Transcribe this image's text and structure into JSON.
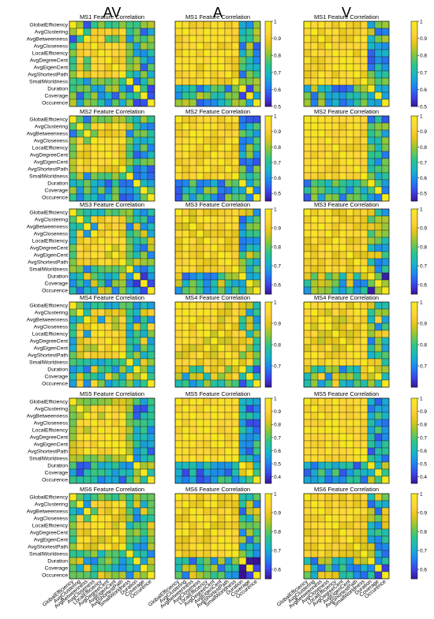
{
  "figure": {
    "columns": [
      "AV",
      "A",
      "V"
    ]
  },
  "features": [
    "GlobalEfficiency",
    "AvgClustering",
    "AvgBetweenness",
    "AvgCloseness",
    "LocalEfficiency",
    "AvgDegreeCent",
    "AvgEigenCent",
    "AvgShortestPath",
    "SmallWorldness",
    "Duration",
    "Coverage",
    "Occurence"
  ],
  "colormap": [
    "#3a0f8f",
    "#3a45e8",
    "#1f86f0",
    "#19b5c8",
    "#2ec48c",
    "#8ac73c",
    "#e6c51a",
    "#ffd43a",
    "#f6e81f"
  ],
  "chart_data": [
    {
      "type": "heatmap",
      "title": "MS1 Feature Correlation",
      "row": 0,
      "col": "AV",
      "seed": 11,
      "min": 0.5,
      "max": 1,
      "kind": "av"
    },
    {
      "type": "heatmap",
      "title": "MS1 Feature Correlation",
      "row": 0,
      "col": "A",
      "seed": 12,
      "min": 0.5,
      "max": 1,
      "kind": "a",
      "colorbar": {
        "ticks": [
          1,
          0.9,
          0.8,
          0.7,
          0.6,
          0.5
        ]
      }
    },
    {
      "type": "heatmap",
      "title": "MS1 Feature Correlation",
      "row": 0,
      "col": "V",
      "seed": 13,
      "min": 0.5,
      "max": 1,
      "kind": "v",
      "colorbar": {
        "ticks": [
          1,
          0.9,
          0.8,
          0.7,
          0.6,
          0.5
        ]
      }
    },
    {
      "type": "heatmap",
      "title": "MS2 Feature Correlation",
      "row": 1,
      "col": "AV",
      "seed": 21,
      "min": 0.45,
      "max": 1,
      "kind": "av"
    },
    {
      "type": "heatmap",
      "title": "MS2 Feature Correlation",
      "row": 1,
      "col": "A",
      "seed": 22,
      "min": 0.45,
      "max": 1,
      "kind": "a",
      "colorbar": {
        "ticks": [
          1,
          0.9,
          0.8,
          0.7,
          0.6,
          0.5
        ]
      }
    },
    {
      "type": "heatmap",
      "title": "MS2 Feature Correlation",
      "row": 1,
      "col": "V",
      "seed": 23,
      "min": 0.45,
      "max": 1,
      "kind": "v",
      "colorbar": {
        "ticks": [
          1,
          0.9,
          0.8,
          0.7,
          0.6,
          0.5
        ]
      }
    },
    {
      "type": "heatmap",
      "title": "MS3 Feature Correlation",
      "row": 2,
      "col": "AV",
      "seed": 31,
      "min": 0.55,
      "max": 1,
      "kind": "av"
    },
    {
      "type": "heatmap",
      "title": "MS3 Feature Correlation",
      "row": 2,
      "col": "A",
      "seed": 32,
      "min": 0.55,
      "max": 1,
      "kind": "a",
      "colorbar": {
        "ticks": [
          1,
          0.9,
          0.8,
          0.7,
          0.6
        ]
      }
    },
    {
      "type": "heatmap",
      "title": "MS3 Feature Correlation",
      "row": 2,
      "col": "V",
      "seed": 33,
      "min": 0.55,
      "max": 1,
      "kind": "v",
      "colorbar": {
        "ticks": [
          1,
          0.9,
          0.8,
          0.7,
          0.6
        ]
      }
    },
    {
      "type": "heatmap",
      "title": "MS4 Feature Correlation",
      "row": 3,
      "col": "AV",
      "seed": 41,
      "min": 0.6,
      "max": 1,
      "kind": "av"
    },
    {
      "type": "heatmap",
      "title": "MS4 Feature Correlation",
      "row": 3,
      "col": "A",
      "seed": 42,
      "min": 0.6,
      "max": 1,
      "kind": "a",
      "colorbar": {
        "ticks": [
          1,
          0.9,
          0.8,
          0.7
        ]
      }
    },
    {
      "type": "heatmap",
      "title": "MS4 Feature Correlation",
      "row": 3,
      "col": "V",
      "seed": 43,
      "min": 0.6,
      "max": 1,
      "kind": "v",
      "colorbar": {
        "ticks": [
          1,
          0.9,
          0.8,
          0.7
        ]
      }
    },
    {
      "type": "heatmap",
      "title": "MS5 Feature Correlation",
      "row": 4,
      "col": "AV",
      "seed": 51,
      "min": 0.35,
      "max": 1,
      "kind": "av"
    },
    {
      "type": "heatmap",
      "title": "MS5 Feature Correlation",
      "row": 4,
      "col": "A",
      "seed": 52,
      "min": 0.35,
      "max": 1,
      "kind": "a",
      "colorbar": {
        "ticks": [
          1,
          0.9,
          0.8,
          0.7,
          0.6,
          0.5,
          0.4
        ]
      }
    },
    {
      "type": "heatmap",
      "title": "MS5 Feature Correlation",
      "row": 4,
      "col": "V",
      "seed": 53,
      "min": 0.35,
      "max": 1,
      "kind": "v",
      "colorbar": {
        "ticks": [
          1,
          0.9,
          0.8,
          0.7,
          0.6,
          0.5,
          0.4
        ]
      }
    },
    {
      "type": "heatmap",
      "title": "MS6 Feature Correlation",
      "row": 5,
      "col": "AV",
      "seed": 61,
      "min": 0.55,
      "max": 1,
      "kind": "av"
    },
    {
      "type": "heatmap",
      "title": "MS6 Feature Correlation",
      "row": 5,
      "col": "A",
      "seed": 62,
      "min": 0.55,
      "max": 1,
      "kind": "a",
      "colorbar": {
        "ticks": [
          1,
          0.9,
          0.8,
          0.7,
          0.6
        ]
      }
    },
    {
      "type": "heatmap",
      "title": "MS6 Feature Correlation",
      "row": 5,
      "col": "V",
      "seed": 63,
      "min": 0.55,
      "max": 1,
      "kind": "v",
      "colorbar": {
        "ticks": [
          1,
          0.9,
          0.8,
          0.7,
          0.6
        ]
      }
    }
  ]
}
